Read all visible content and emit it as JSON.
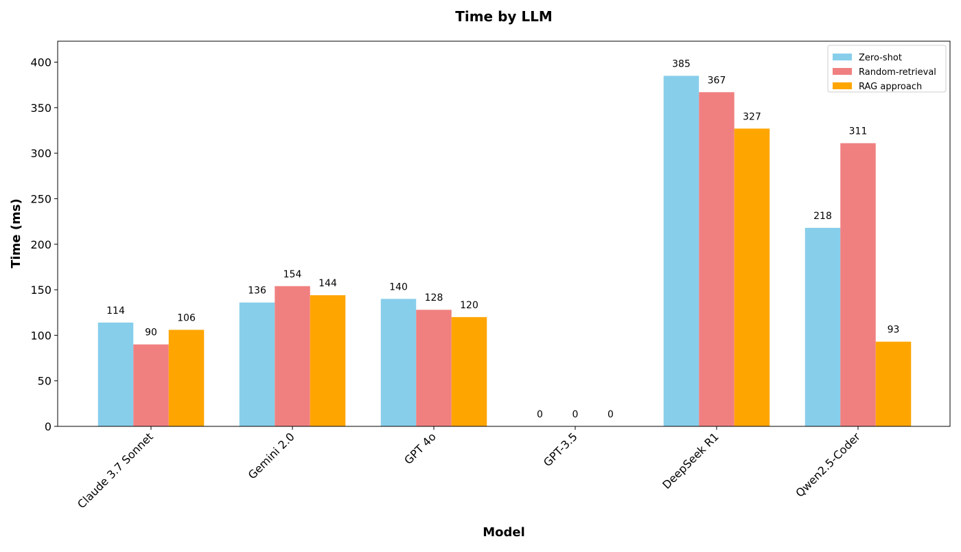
{
  "chart_data": {
    "type": "bar",
    "title": "Time by LLM",
    "xlabel": "Model",
    "ylabel": "Time (ms)",
    "categories": [
      "Claude 3.7 Sonnet",
      "Gemini 2.0",
      "GPT 4o",
      "GPT-3.5",
      "DeepSeek R1",
      "Qwen2.5-Coder"
    ],
    "series": [
      {
        "name": "Zero-shot",
        "color": "#87CEEB",
        "values": [
          114,
          136,
          140,
          0,
          385,
          218
        ]
      },
      {
        "name": "Random-retrieval",
        "color": "#F08080",
        "values": [
          90,
          154,
          128,
          0,
          367,
          311
        ]
      },
      {
        "name": "RAG approach",
        "color": "#FFA500",
        "values": [
          106,
          144,
          120,
          0,
          327,
          93
        ]
      }
    ],
    "ylim": [
      0,
      423
    ],
    "yticks": [
      0,
      50,
      100,
      150,
      200,
      250,
      300,
      350,
      400
    ],
    "grid": false,
    "legend_position": "top-right",
    "data_labels": true
  }
}
